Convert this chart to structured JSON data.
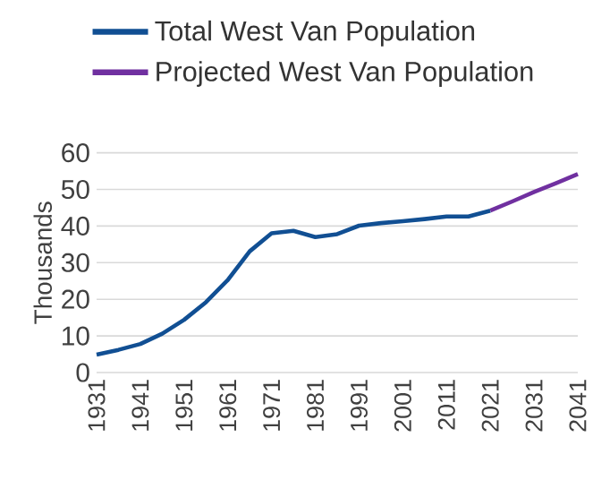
{
  "chart_data": {
    "type": "line",
    "ylabel": "Thousands",
    "series": [
      {
        "name": "Total West Van Population",
        "color": "#114f93",
        "x": [
          1931,
          1936,
          1941,
          1946,
          1951,
          1956,
          1961,
          1966,
          1971,
          1976,
          1981,
          1986,
          1991,
          1996,
          2001,
          2006,
          2011,
          2016,
          2021
        ],
        "values": [
          4.9,
          6.2,
          7.8,
          10.6,
          14.4,
          19.2,
          25.3,
          33.1,
          38.0,
          38.7,
          37.0,
          37.8,
          40.1,
          40.8,
          41.3,
          41.9,
          42.6,
          42.6,
          44.2
        ]
      },
      {
        "name": "Projected West Van Population",
        "color": "#7030a0",
        "x": [
          2021,
          2026,
          2031,
          2036,
          2041
        ],
        "values": [
          44.2,
          46.7,
          49.3,
          51.7,
          54.2
        ]
      }
    ],
    "xlim": [
      1931,
      2041
    ],
    "xticks": [
      1931,
      1941,
      1951,
      1961,
      1971,
      1981,
      1991,
      2001,
      2011,
      2021,
      2031,
      2041
    ],
    "ylim": [
      0,
      60
    ],
    "yticks": [
      0,
      10,
      20,
      30,
      40,
      50,
      60
    ],
    "grid": "y",
    "legend": "top left",
    "marker": "none",
    "line_style": "solid"
  }
}
